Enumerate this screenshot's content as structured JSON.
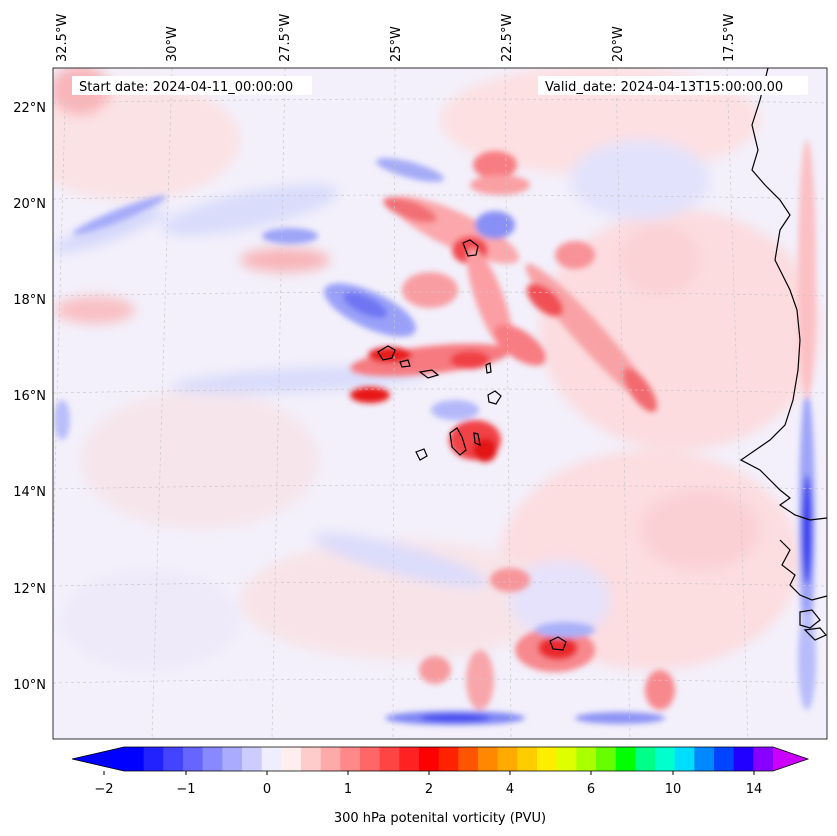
{
  "map": {
    "start_label": "Start date: 2024-04-11_00:00:00",
    "valid_label": "Valid_date: 2024-04-13T15:00:00.00",
    "lon_labels": [
      "32.5°W",
      "30°W",
      "27.5°W",
      "25°W",
      "22.5°W",
      "20°W",
      "17.5°W"
    ],
    "lat_labels": [
      "22°N",
      "20°N",
      "18°N",
      "16°N",
      "14°N",
      "12°N",
      "10°N"
    ],
    "features": [
      {
        "name": "red-max-north",
        "kind": "pos",
        "strength": 3
      },
      {
        "name": "red-band-central",
        "kind": "pos",
        "strength": 3
      },
      {
        "name": "red-band-east",
        "kind": "pos",
        "strength": 2
      },
      {
        "name": "red-max-south",
        "kind": "pos",
        "strength": 3
      },
      {
        "name": "blue-min-central",
        "kind": "neg",
        "strength": 3
      },
      {
        "name": "blue-min-south",
        "kind": "neg",
        "strength": 3
      },
      {
        "name": "blue-min-coast",
        "kind": "neg",
        "strength": 3
      }
    ]
  },
  "colorbar": {
    "label": "300 hPa potenital vorticity (PVU)",
    "tick_labels": [
      "−2",
      "−1",
      "0",
      "1",
      "2",
      "4",
      "6",
      "10",
      "14"
    ],
    "colors": [
      "#0000ff",
      "#2222ff",
      "#4444ff",
      "#6666ff",
      "#8888ff",
      "#aaaaff",
      "#ccccff",
      "#eeeeff",
      "#ffeeee",
      "#ffcccc",
      "#ffaaaa",
      "#ff8888",
      "#ff6666",
      "#ff4444",
      "#ff2222",
      "#ff0000",
      "#ff2200",
      "#ff5500",
      "#ff8800",
      "#ffaa00",
      "#ffcc00",
      "#ffee00",
      "#ddff00",
      "#aaff00",
      "#66ff00",
      "#00ff00",
      "#00ff88",
      "#00ffcc",
      "#00ddff",
      "#0088ff",
      "#0044ff",
      "#2200ff",
      "#8800ff"
    ],
    "extend_low_color": "#0000ff",
    "extend_high_color": "#cc00ff"
  }
}
